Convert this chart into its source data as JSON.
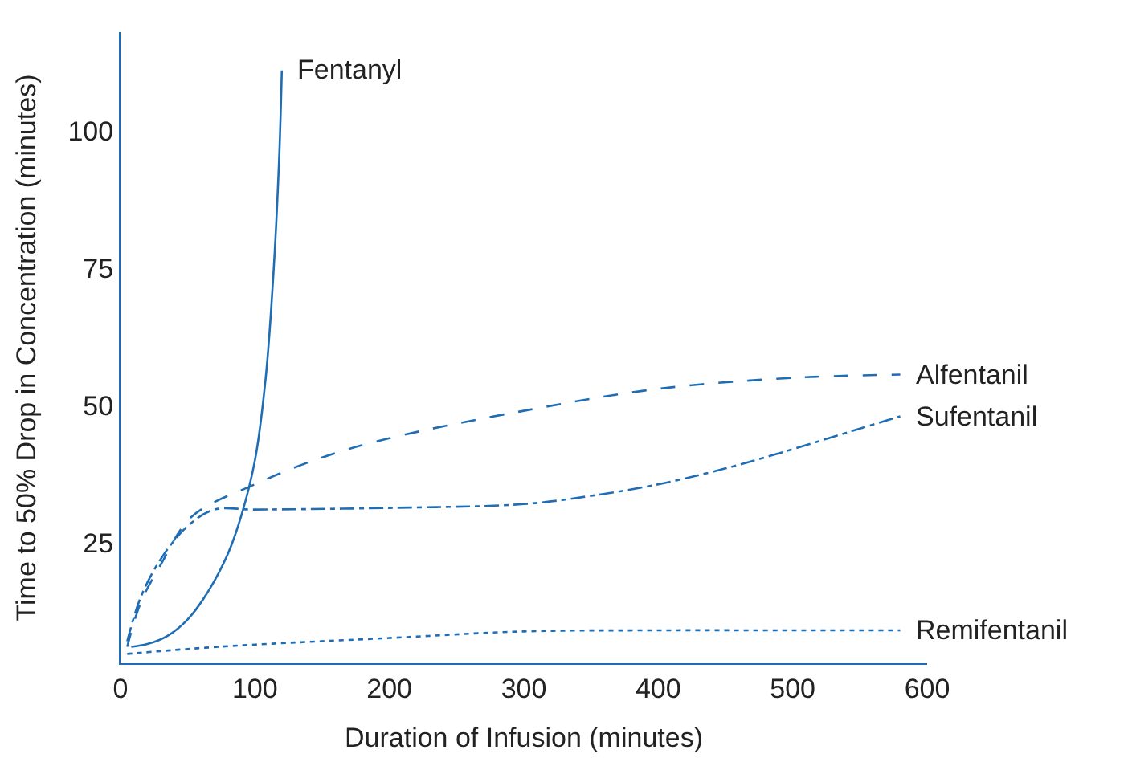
{
  "chart_data": {
    "type": "line",
    "xlabel": "Duration of Infusion (minutes)",
    "ylabel": "Time to 50% Drop in Concentration (minutes)",
    "xlim": [
      0,
      600
    ],
    "ylim": [
      3,
      118
    ],
    "xticks": [
      0,
      100,
      200,
      300,
      400,
      500,
      600
    ],
    "yticks": [
      25,
      50,
      75,
      100
    ],
    "legend": false,
    "marker": "none",
    "series": [
      {
        "name": "Fentanyl",
        "color": "#1f6db5",
        "line_style": "solid",
        "x": [
          8,
          20,
          35,
          50,
          65,
          80,
          90,
          100,
          108,
          114,
          118,
          120
        ],
        "values": [
          6,
          6.5,
          8,
          11,
          16,
          23,
          30,
          40,
          55,
          75,
          95,
          111
        ]
      },
      {
        "name": "Alfentanil",
        "color": "#1f6db5",
        "line_style": "dashed",
        "x": [
          5,
          15,
          30,
          53,
          100,
          150,
          200,
          300,
          400,
          500,
          580
        ],
        "values": [
          6,
          14,
          21,
          29.7,
          35.6,
          40.5,
          44,
          49,
          53,
          55,
          55.6
        ]
      },
      {
        "name": "Sufentanil",
        "color": "#1f6db5",
        "line_style": "dashdot",
        "x": [
          5,
          15,
          30,
          50,
          70,
          100,
          200,
          300,
          350,
          400,
          450,
          500,
          540,
          580
        ],
        "values": [
          7,
          15,
          22,
          28,
          31,
          31,
          31.3,
          32,
          33.5,
          35.6,
          38.5,
          42,
          45,
          48
        ]
      },
      {
        "name": "Remifentanil",
        "color": "#1f6db5",
        "line_style": "dotted",
        "x": [
          5,
          50,
          100,
          200,
          300,
          400,
          500,
          580
        ],
        "values": [
          4.7,
          5.6,
          6.4,
          7.6,
          8.8,
          9,
          9,
          9
        ]
      }
    ]
  }
}
